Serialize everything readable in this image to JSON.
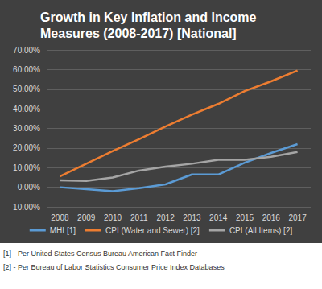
{
  "chart_data": {
    "type": "line",
    "title": "Growth in Key Inflation and Income Measures (2008-2017) [National]",
    "categories": [
      "2008",
      "2009",
      "2010",
      "2011",
      "2012",
      "2013",
      "2014",
      "2015",
      "2016",
      "2017"
    ],
    "series": [
      {
        "name": "MHI [1]",
        "color": "#5b9bd5",
        "values": [
          0,
          -1,
          -2,
          -0.5,
          1.5,
          6.5,
          6.5,
          12.5,
          17.5,
          22
        ]
      },
      {
        "name": "CPI (Water and Sewer) [2]",
        "color": "#ed7d31",
        "values": [
          5.5,
          12,
          18.5,
          24.5,
          31,
          37,
          42.5,
          49,
          54,
          59.5
        ]
      },
      {
        "name": "CPI (All Items) [2]",
        "color": "#a5a5a5",
        "values": [
          3.5,
          3.2,
          5,
          8.5,
          10.5,
          12,
          14,
          14,
          15.5,
          18
        ]
      }
    ],
    "ylim": [
      -10,
      70
    ],
    "yticks": [
      {
        "value": -10,
        "label": "-10.00%"
      },
      {
        "value": 0,
        "label": "0.00%"
      },
      {
        "value": 10,
        "label": "10.00%"
      },
      {
        "value": 20,
        "label": "20.00%"
      },
      {
        "value": 30,
        "label": "30.00%"
      },
      {
        "value": 40,
        "label": "40.00%"
      },
      {
        "value": 50,
        "label": "50.00%"
      },
      {
        "value": 60,
        "label": "60.00%"
      },
      {
        "value": 70,
        "label": "70.00%"
      }
    ],
    "grid": true,
    "legend": "bottom",
    "annotations": [
      "[1] - Per United States Census Bureau American Fact Finder",
      "[2] - Per Bureau of Labor Statistics Consumer Price Index Databases"
    ]
  }
}
